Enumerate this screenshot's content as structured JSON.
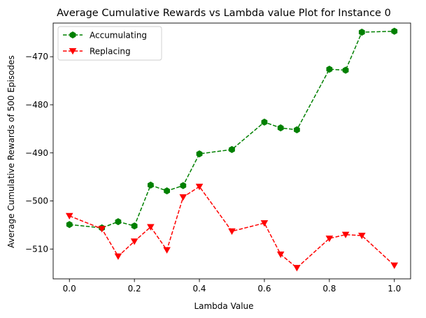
{
  "chart_data": {
    "type": "line",
    "title": "Average Cumulative Rewards vs Lambda value Plot for Instance 0",
    "xlabel": "Lambda Value",
    "ylabel": "Average Cumulative Rewards of 500 Episodes",
    "xlim": [
      -0.05,
      1.05
    ],
    "ylim": [
      -516.2,
      -463.0
    ],
    "xticks": [
      0.0,
      0.2,
      0.4,
      0.6,
      0.8,
      1.0
    ],
    "xtick_labels": [
      "0.0",
      "0.2",
      "0.4",
      "0.6",
      "0.8",
      "1.0"
    ],
    "yticks": [
      -510,
      -500,
      -490,
      -480,
      -470
    ],
    "ytick_labels": [
      "−510",
      "−500",
      "−490",
      "−480",
      "−470"
    ],
    "grid": false,
    "legend_position": "top-left",
    "x": [
      0.0,
      0.1,
      0.15,
      0.2,
      0.25,
      0.3,
      0.35,
      0.4,
      0.5,
      0.6,
      0.65,
      0.7,
      0.8,
      0.85,
      0.9,
      1.0
    ],
    "series": [
      {
        "name": "Accumulating",
        "color": "#008000",
        "marker": "hexagon",
        "line_style": "dashed",
        "values": [
          -504.9,
          -505.6,
          -504.3,
          -505.2,
          -496.7,
          -497.9,
          -496.8,
          -490.2,
          -489.3,
          -483.6,
          -484.8,
          -485.2,
          -472.6,
          -472.8,
          -464.9,
          -464.7
        ]
      },
      {
        "name": "Replacing",
        "color": "#ff0000",
        "marker": "triangle-down",
        "line_style": "dashed",
        "values": [
          -503.1,
          -505.8,
          -511.5,
          -508.4,
          -505.4,
          -510.2,
          -499.2,
          -497.0,
          -506.3,
          -504.6,
          -511.1,
          -513.9,
          -507.8,
          -507.0,
          -507.2,
          -513.4
        ]
      }
    ]
  }
}
